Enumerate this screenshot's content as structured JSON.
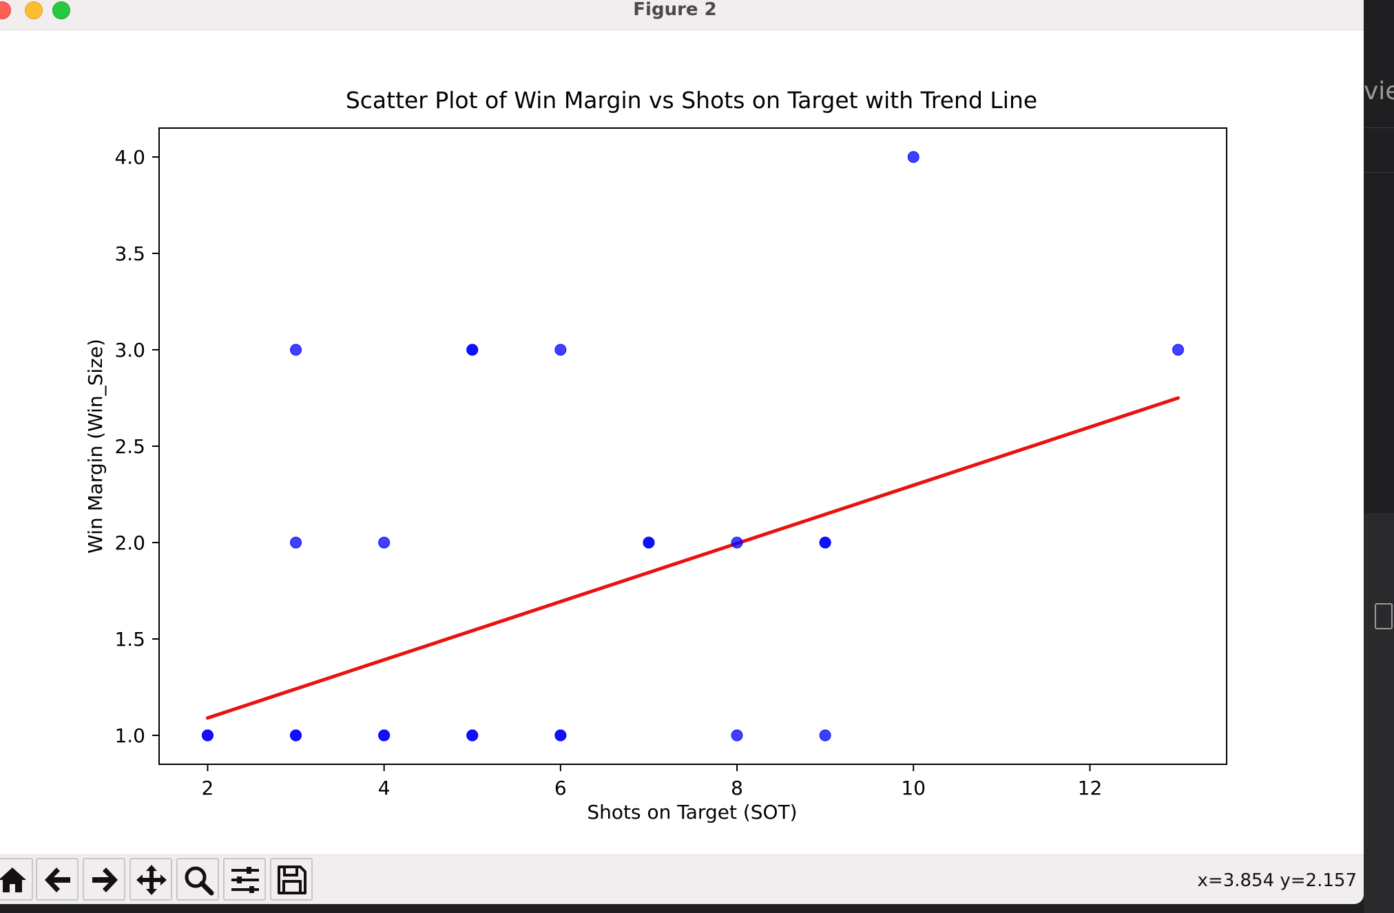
{
  "window": {
    "title": "Figure 2"
  },
  "chart_data": {
    "type": "scatter",
    "title": "Scatter Plot of Win Margin vs Shots on Target with Trend Line",
    "xlabel": "Shots on Target (SOT)",
    "ylabel": "Win Margin (Win_Size)",
    "xlim": [
      1.45,
      13.55
    ],
    "ylim": [
      0.85,
      4.15
    ],
    "xticks": [
      2,
      4,
      6,
      8,
      10,
      12
    ],
    "yticks": [
      1.0,
      1.5,
      2.0,
      2.5,
      3.0,
      3.5,
      4.0
    ],
    "xtick_labels": [
      "2",
      "4",
      "6",
      "8",
      "10",
      "12"
    ],
    "ytick_labels": [
      "1.0",
      "1.5",
      "2.0",
      "2.5",
      "3.0",
      "3.5",
      "4.0"
    ],
    "grid": false,
    "legend": "none",
    "points": [
      {
        "x": 2,
        "y": 1
      },
      {
        "x": 2,
        "y": 1
      },
      {
        "x": 3,
        "y": 1
      },
      {
        "x": 3,
        "y": 1
      },
      {
        "x": 3,
        "y": 2
      },
      {
        "x": 3,
        "y": 3
      },
      {
        "x": 4,
        "y": 1
      },
      {
        "x": 4,
        "y": 1
      },
      {
        "x": 4,
        "y": 2
      },
      {
        "x": 5,
        "y": 1
      },
      {
        "x": 5,
        "y": 1
      },
      {
        "x": 5,
        "y": 3
      },
      {
        "x": 5,
        "y": 3
      },
      {
        "x": 6,
        "y": 1
      },
      {
        "x": 6,
        "y": 1
      },
      {
        "x": 6,
        "y": 3
      },
      {
        "x": 7,
        "y": 2
      },
      {
        "x": 7,
        "y": 2
      },
      {
        "x": 8,
        "y": 1
      },
      {
        "x": 8,
        "y": 2
      },
      {
        "x": 9,
        "y": 1
      },
      {
        "x": 9,
        "y": 2
      },
      {
        "x": 9,
        "y": 2
      },
      {
        "x": 10,
        "y": 4
      },
      {
        "x": 13,
        "y": 3
      }
    ],
    "trend_line": {
      "x": [
        2,
        13
      ],
      "y": [
        1.09,
        2.75
      ]
    },
    "colors": {
      "points": "#0000ff",
      "trend": "#e8120f"
    }
  },
  "toolbar": {
    "buttons": [
      {
        "icon": "home-icon"
      },
      {
        "icon": "back-arrow-icon"
      },
      {
        "icon": "forward-arrow-icon"
      },
      {
        "icon": "pan-move-icon"
      },
      {
        "icon": "zoom-magnifier-icon"
      },
      {
        "icon": "configure-subplots-icon"
      },
      {
        "icon": "save-floppy-icon"
      }
    ],
    "coord_readout": "x=3.854 y=2.157"
  },
  "background_app": {
    "partial_text": "view"
  }
}
